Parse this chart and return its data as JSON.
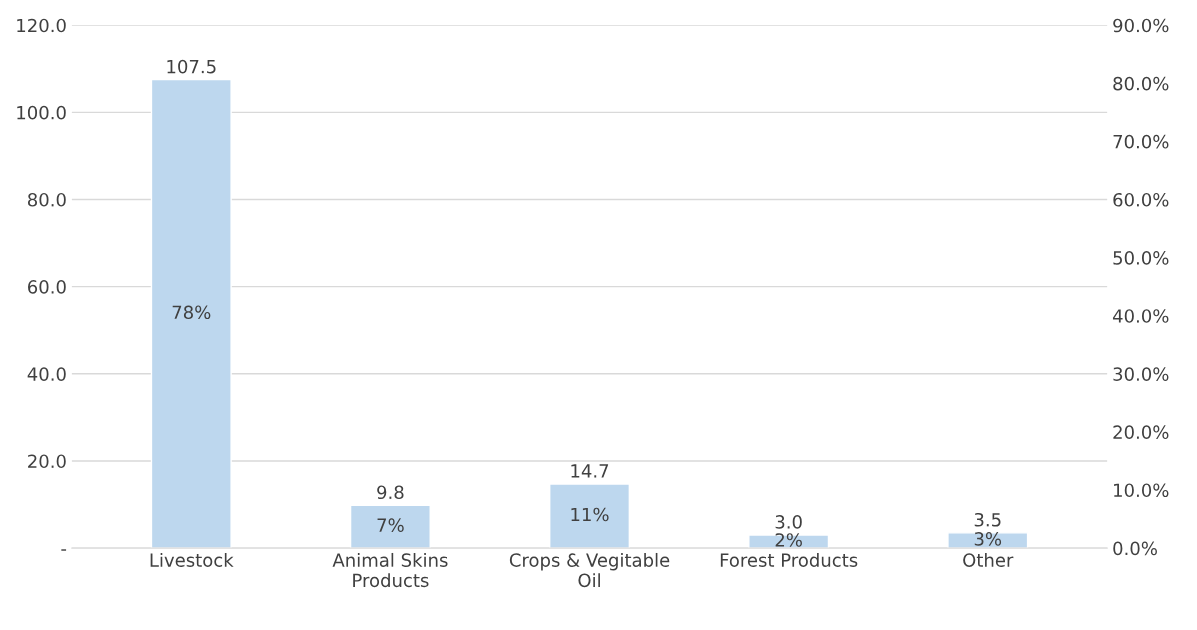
{
  "chart_data": {
    "type": "bar",
    "categories": [
      "Livestock",
      "Animal Skins\nProducts",
      "Crops & Vegitable\nOil",
      "Forest Products",
      "Other"
    ],
    "values": [
      107.5,
      9.8,
      14.7,
      3.0,
      3.5
    ],
    "value_labels": [
      "107.5",
      "9.8",
      "14.7",
      "3.0",
      "3.5"
    ],
    "color": "#bdd7ee",
    "ylim": [
      0,
      120
    ],
    "yticks": [
      {
        "value": 0,
        "label": "-"
      },
      {
        "value": 20,
        "label": "20.0"
      },
      {
        "value": 40,
        "label": "40.0"
      },
      {
        "value": 60,
        "label": "60.0"
      },
      {
        "value": 80,
        "label": "80.0"
      },
      {
        "value": 100,
        "label": "100.0"
      },
      {
        "value": 120,
        "label": "120.0"
      }
    ],
    "y2lim": [
      0,
      0.9
    ],
    "y2ticks": [
      {
        "value": 0,
        "label": "0.0%"
      },
      {
        "value": 0.1,
        "label": "10.0%"
      },
      {
        "value": 0.2,
        "label": "20.0%"
      },
      {
        "value": 0.3,
        "label": "30.0%"
      },
      {
        "value": 0.4,
        "label": "40.0%"
      },
      {
        "value": 0.5,
        "label": "50.0%"
      },
      {
        "value": 0.6,
        "label": "60.0%"
      },
      {
        "value": 0.7,
        "label": "70.0%"
      },
      {
        "value": 0.8,
        "label": "80.0%"
      },
      {
        "value": 0.9,
        "label": "90.0%"
      }
    ],
    "annotations": [
      "78%",
      "7%",
      "11%",
      "2%",
      "3%"
    ],
    "grid": "y",
    "legend": false
  }
}
